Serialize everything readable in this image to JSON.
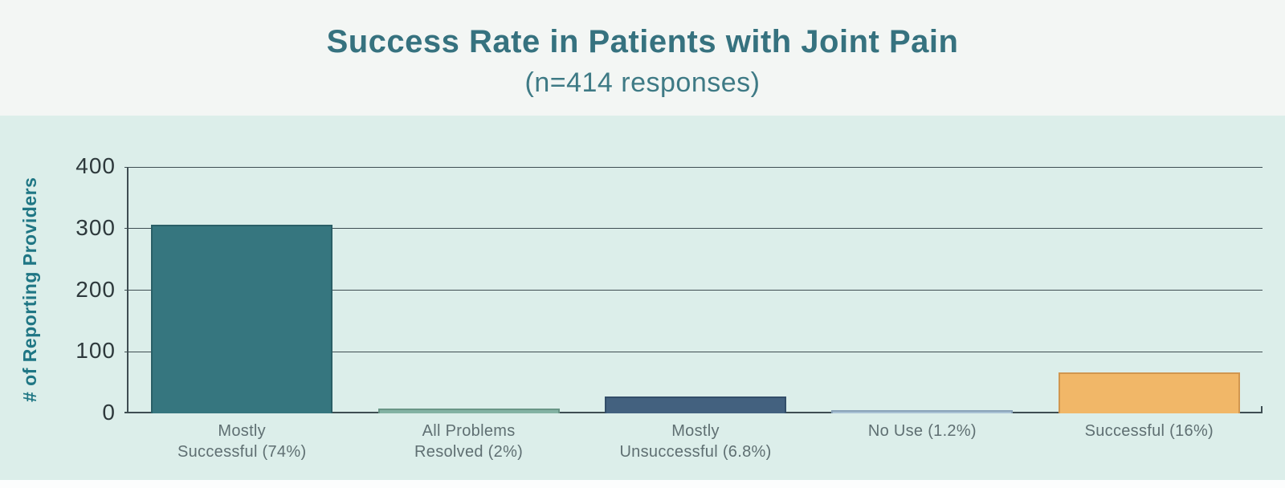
{
  "header": {
    "title": "Success Rate in Patients with Joint Pain",
    "subtitle": "(n=414 responses)"
  },
  "colors": {
    "title_text": "#36727f",
    "subtitle_text": "#3e7a85",
    "header_background": "#f3f6f4",
    "chart_background": "#dceeea",
    "axis_and_grid": "#3e4d52",
    "y_tick_label_text": "#2e393c",
    "category_label_text": "#5f6f72",
    "y_axis_title_text": "#1f7684"
  },
  "chart_data": {
    "type": "bar",
    "title": "Success Rate in Patients with Joint Pain",
    "subtitle": "(n=414 responses)",
    "xlabel": "",
    "ylabel": "# of Reporting Providers",
    "ylim": [
      0,
      400
    ],
    "yticks": [
      0,
      100,
      200,
      300,
      400
    ],
    "grid": true,
    "legend": false,
    "categories": [
      "Mostly\nSuccessful (74%)",
      "All Problems\nResolved (2%)",
      "Mostly\nUnsuccessful (6.8%)",
      "No Use (1.2%)",
      "Successful (16%)"
    ],
    "values": [
      306,
      8,
      28,
      5,
      66
    ],
    "percentages": [
      74,
      2,
      6.8,
      1.2,
      16
    ],
    "n_responses": 414,
    "bar_colors": [
      "#36767f",
      "#83b2a3",
      "#43617f",
      "#a9c1d4",
      "#f1b768"
    ],
    "bar_border_colors": [
      "#2a5f67",
      "#699687",
      "#334e69",
      "#8aa3b9",
      "#d1964f"
    ]
  }
}
